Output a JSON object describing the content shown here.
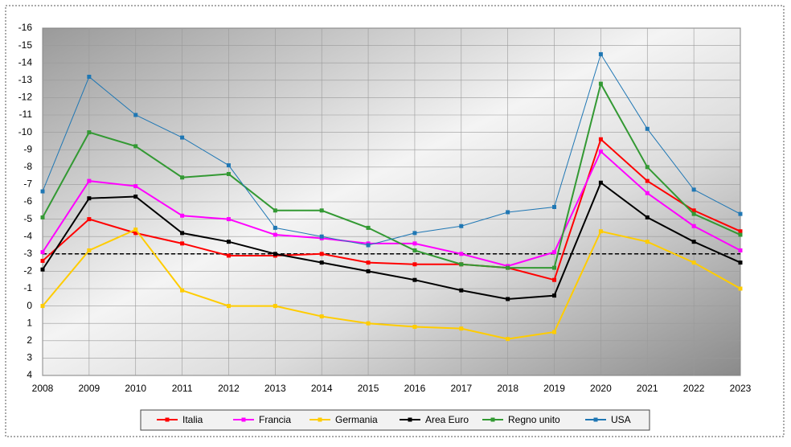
{
  "chart_data": {
    "type": "line",
    "categories": [
      "2008",
      "2009",
      "2010",
      "2011",
      "2012",
      "2013",
      "2014",
      "2015",
      "2016",
      "2017",
      "2018",
      "2019",
      "2020",
      "2021",
      "2022",
      "2023"
    ],
    "ylim": [
      4,
      -16
    ],
    "yticks": [
      -16,
      -15,
      -14,
      -13,
      -12,
      -11,
      -10,
      -9,
      -8,
      -7,
      -6,
      -5,
      -4,
      -3,
      -2,
      -1,
      0,
      1,
      2,
      3,
      4
    ],
    "grid": true,
    "reference_line": -3,
    "legend": "bottom",
    "series": [
      {
        "name": "Italia",
        "color": "#ff0000",
        "values": [
          -2.6,
          -5.0,
          -4.2,
          -3.6,
          -2.9,
          -2.9,
          -3.0,
          -2.5,
          -2.4,
          -2.4,
          -2.2,
          -1.5,
          -9.6,
          -7.2,
          -5.5,
          -4.3
        ]
      },
      {
        "name": "Francia",
        "color": "#ff00ff",
        "values": [
          -3.1,
          -7.2,
          -6.9,
          -5.2,
          -5.0,
          -4.1,
          -3.9,
          -3.6,
          -3.6,
          -3.0,
          -2.3,
          -3.1,
          -8.9,
          -6.5,
          -4.6,
          -3.2
        ]
      },
      {
        "name": "Germania",
        "color": "#ffcc00",
        "values": [
          0.0,
          -3.2,
          -4.4,
          -0.9,
          0.0,
          0.0,
          0.6,
          1.0,
          1.2,
          1.3,
          1.9,
          1.5,
          -4.3,
          -3.7,
          -2.5,
          -1.0
        ]
      },
      {
        "name": "Area Euro",
        "color": "#000000",
        "values": [
          -2.1,
          -6.2,
          -6.3,
          -4.2,
          -3.7,
          -3.0,
          -2.5,
          -2.0,
          -1.5,
          -0.9,
          -0.4,
          -0.6,
          -7.1,
          -5.1,
          -3.7,
          -2.5
        ]
      },
      {
        "name": "Regno unito",
        "color": "#339933",
        "values": [
          -5.1,
          -10.0,
          -9.2,
          -7.4,
          -7.6,
          -5.5,
          -5.5,
          -4.5,
          -3.2,
          -2.4,
          -2.2,
          -2.2,
          -12.8,
          -8.0,
          -5.3,
          -4.1
        ]
      },
      {
        "name": "USA",
        "color": "#1f77b4",
        "values": [
          -6.6,
          -13.2,
          -11.0,
          -9.7,
          -8.1,
          -4.5,
          -4.0,
          -3.5,
          -4.2,
          -4.6,
          -5.4,
          -5.7,
          -14.5,
          -10.2,
          -6.7,
          -5.3
        ]
      }
    ]
  }
}
